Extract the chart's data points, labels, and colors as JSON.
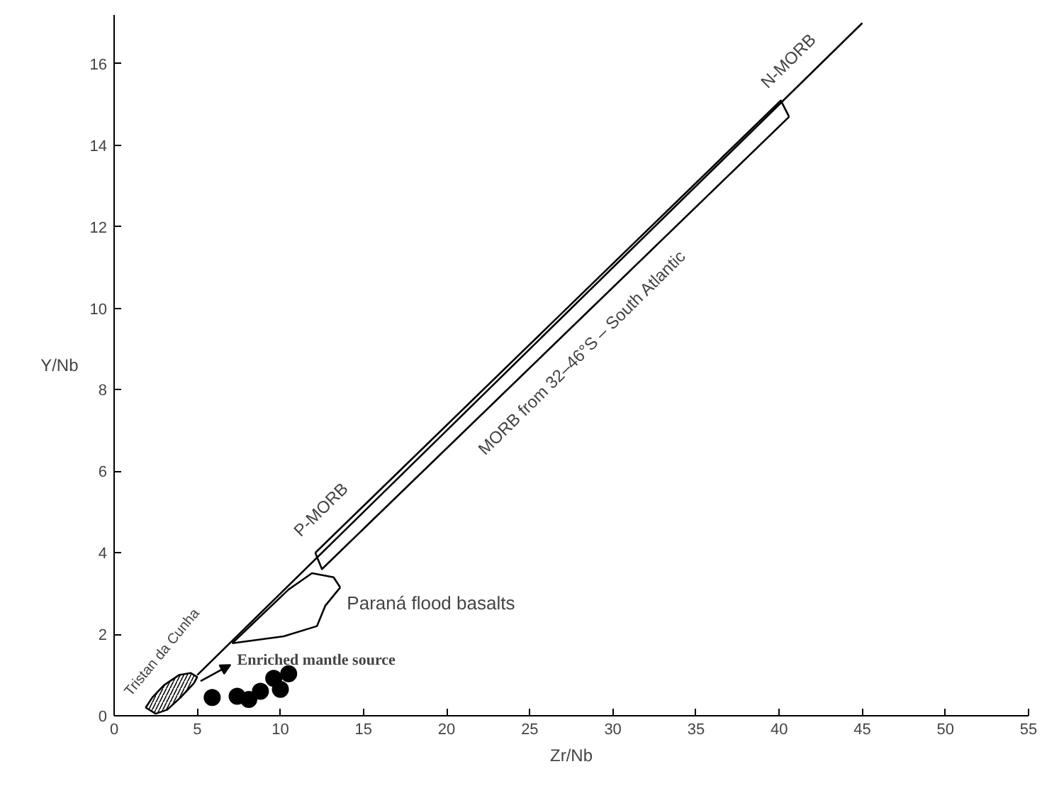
{
  "chart_data": {
    "type": "scatter",
    "xlabel": "Zr/Nb",
    "ylabel": "Y/Nb",
    "xlim": [
      0,
      55
    ],
    "ylim": [
      0,
      17.2
    ],
    "xticks": [
      0,
      5,
      10,
      15,
      20,
      25,
      30,
      35,
      40,
      45,
      50,
      55
    ],
    "yticks": [
      0,
      2,
      4,
      6,
      8,
      10,
      12,
      14,
      16
    ],
    "series": [
      {
        "type": "line",
        "color": "#000000",
        "x": [
          5,
          45
        ],
        "values": [
          1,
          17
        ]
      },
      {
        "type": "line",
        "color": "#000000",
        "x": [
          12.1,
          40.1,
          40.6
        ],
        "values": [
          4.0,
          15.1,
          14.7
        ]
      },
      {
        "type": "line",
        "color": "#000000",
        "x": [
          12.1,
          12.5,
          40.6
        ],
        "values": [
          4.0,
          3.6,
          14.7
        ]
      },
      {
        "type": "line",
        "color": "#000000",
        "x": [
          7.1,
          10.5,
          11.2,
          11.9,
          13.2,
          13.6
        ],
        "values": [
          1.78,
          3.1,
          3.3,
          3.5,
          3.4,
          3.15
        ]
      },
      {
        "type": "line",
        "color": "#000000",
        "x": [
          7.1,
          10.2,
          12.2,
          12.7,
          13.6
        ],
        "values": [
          1.78,
          1.95,
          2.2,
          2.7,
          3.15
        ]
      },
      {
        "type": "area",
        "color": "#000000",
        "x": [
          1.9,
          2.5,
          3.2,
          4.0,
          4.8,
          5.0,
          4.6,
          3.9,
          3.0,
          2.3,
          1.9
        ],
        "values": [
          0.2,
          0.05,
          0.15,
          0.45,
          0.8,
          0.95,
          1.05,
          1.0,
          0.75,
          0.45,
          0.2
        ]
      },
      {
        "color": "#000000",
        "marker": "circle",
        "x": [
          5.9,
          7.4,
          8.1,
          8.8,
          9.6,
          10.0,
          10.5
        ],
        "values": [
          0.45,
          0.48,
          0.4,
          0.6,
          0.92,
          0.65,
          1.03
        ]
      }
    ],
    "annotations": [
      "Tristan da Cunha",
      "Enriched mantle source",
      "Paraná flood basalts",
      "P-MORB",
      "MORB from 32–46°S – South Atlantic",
      "N-MORB"
    ]
  }
}
